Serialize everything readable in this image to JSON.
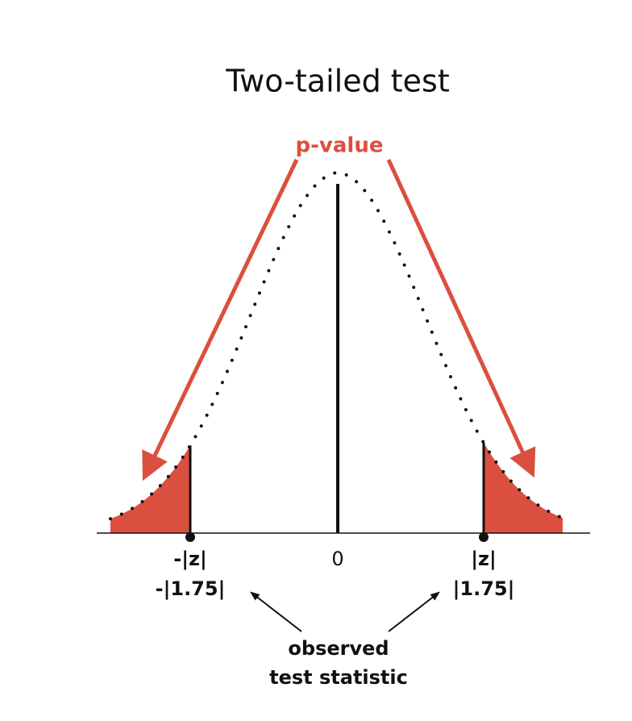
{
  "title": "Two-tailed test",
  "p_value_label": "p-value",
  "left_marker": {
    "symbol": "-|z|",
    "value": "-|1.75|"
  },
  "center_label": "0",
  "right_marker": {
    "symbol": "|z|",
    "value": "|1.75|"
  },
  "caption": {
    "line1": "observed",
    "line2": "test statistic"
  }
}
